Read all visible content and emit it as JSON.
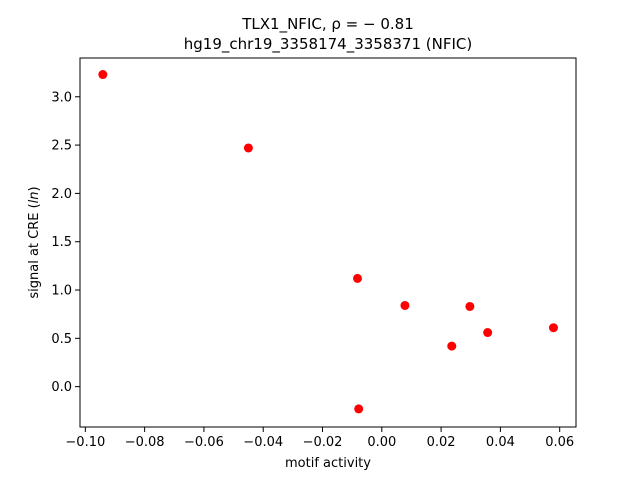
{
  "chart_data": {
    "type": "scatter",
    "title_line1": "TLX1_NFIC, ρ = − 0.81",
    "title_line2": "hg19_chr19_3358174_3358371 (NFIC)",
    "xlabel": "motif activity",
    "ylabel_prefix": "signal at CRE (",
    "ylabel_italic": "ln",
    "ylabel_suffix": ")",
    "xlim": [
      -0.1018,
      0.0655
    ],
    "ylim": [
      -0.4175,
      3.4012
    ],
    "xticks": [
      -0.1,
      -0.08,
      -0.06,
      -0.04,
      -0.02,
      0.0,
      0.02,
      0.04,
      0.06
    ],
    "xtick_labels": [
      "−0.10",
      "−0.08",
      "−0.06",
      "−0.04",
      "−0.02",
      "0.00",
      "0.02",
      "0.04",
      "0.06"
    ],
    "yticks": [
      0.0,
      0.5,
      1.0,
      1.5,
      2.0,
      2.5,
      3.0
    ],
    "ytick_labels": [
      "0.0",
      "0.5",
      "1.0",
      "1.5",
      "2.0",
      "2.5",
      "3.0"
    ],
    "marker_color": "#ff0000",
    "grid": false,
    "points": [
      {
        "x": -0.0941,
        "y": 3.23
      },
      {
        "x": -0.045,
        "y": 2.47
      },
      {
        "x": -0.0082,
        "y": 1.12
      },
      {
        "x": 0.0078,
        "y": 0.84
      },
      {
        "x": 0.0297,
        "y": 0.83
      },
      {
        "x": 0.0357,
        "y": 0.56
      },
      {
        "x": 0.0579,
        "y": 0.61
      },
      {
        "x": 0.0236,
        "y": 0.42
      },
      {
        "x": -0.0078,
        "y": -0.23
      }
    ]
  }
}
